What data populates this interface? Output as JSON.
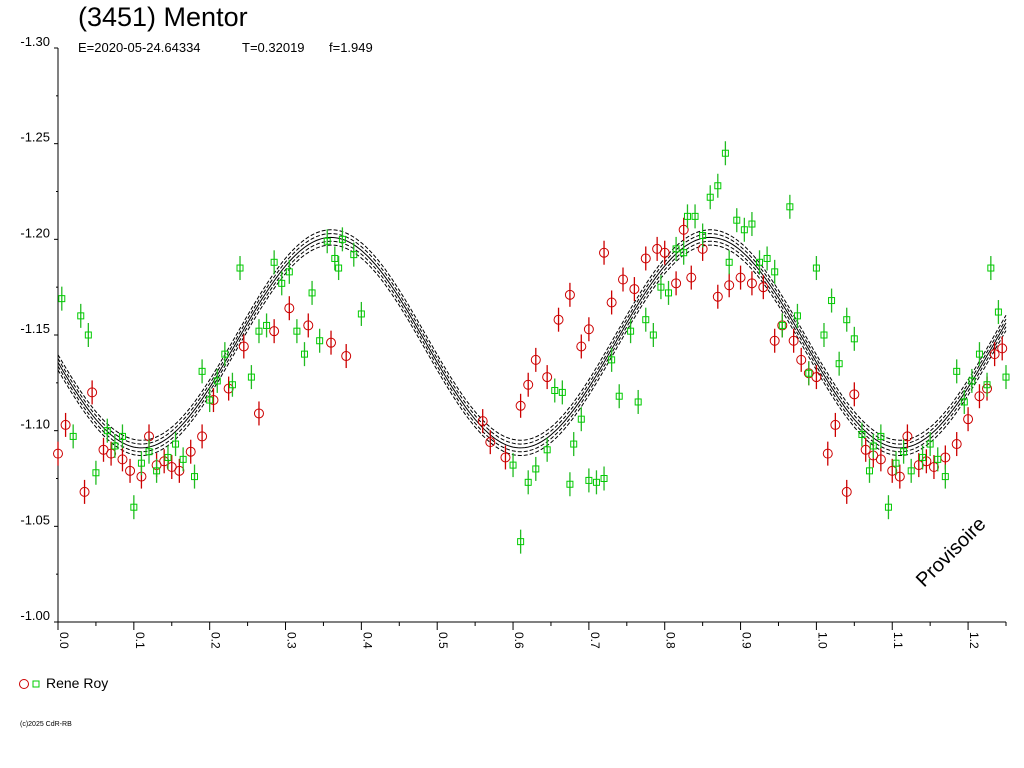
{
  "header": {
    "title": "(3451) Mentor",
    "epoch": "E=2020-05-24.64334",
    "period": "T=0.32019",
    "order": "f=1.949"
  },
  "legend": {
    "observer": "Rene Roy",
    "marker_colors": {
      "circle": "#cc0000",
      "square": "#00cc00"
    }
  },
  "watermark": "Provisoire",
  "copyright": "(c)2025 CdR-RB",
  "colors": {
    "circle_series": "#cc0000",
    "square_series": "#00cc00",
    "error_red": "#cc0000",
    "error_green": "#22bb22",
    "model_curve": "#000000"
  },
  "chart_data": {
    "type": "scatter",
    "xlim": [
      0.0,
      1.25
    ],
    "ylim": [
      -1.3,
      -1.0
    ],
    "y_inverted": true,
    "x_ticks": [
      "0.0",
      "0.1",
      "0.2",
      "0.3",
      "0.4",
      "0.5",
      "0.6",
      "0.7",
      "0.8",
      "0.9",
      "1.0",
      "1.1",
      "1.2"
    ],
    "y_ticks": [
      "-1.30",
      "-1.25",
      "-1.20",
      "-1.15",
      "-1.10",
      "-1.05",
      "-1.00"
    ],
    "fit_curve": {
      "order_label": "f=1.949",
      "mean": -1.146,
      "amplitude": 0.055,
      "peak_phase": 0.36,
      "band_offsets": [
        -0.004,
        -0.002,
        0,
        0.002,
        0.004
      ]
    },
    "series": [
      {
        "name": "Rene Roy",
        "marker": "circle",
        "points": [
          [
            0.0,
            -1.088
          ],
          [
            0.01,
            -1.103
          ],
          [
            0.035,
            -1.068
          ],
          [
            0.045,
            -1.12
          ],
          [
            0.06,
            -1.09
          ],
          [
            0.07,
            -1.088
          ],
          [
            0.085,
            -1.085
          ],
          [
            0.095,
            -1.079
          ],
          [
            0.11,
            -1.076
          ],
          [
            0.12,
            -1.097
          ],
          [
            0.13,
            -1.082
          ],
          [
            0.14,
            -1.084
          ],
          [
            0.15,
            -1.081
          ],
          [
            0.16,
            -1.079
          ],
          [
            0.175,
            -1.089
          ],
          [
            0.19,
            -1.097
          ],
          [
            0.205,
            -1.116
          ],
          [
            0.225,
            -1.122
          ],
          [
            0.245,
            -1.144
          ],
          [
            0.265,
            -1.109
          ],
          [
            0.285,
            -1.152
          ],
          [
            0.305,
            -1.164
          ],
          [
            0.33,
            -1.155
          ],
          [
            0.36,
            -1.146
          ],
          [
            0.38,
            -1.139
          ],
          [
            0.56,
            -1.105
          ],
          [
            0.57,
            -1.094
          ],
          [
            0.59,
            -1.086
          ],
          [
            0.61,
            -1.113
          ],
          [
            0.62,
            -1.124
          ],
          [
            0.63,
            -1.137
          ],
          [
            0.645,
            -1.128
          ],
          [
            0.66,
            -1.158
          ],
          [
            0.675,
            -1.171
          ],
          [
            0.69,
            -1.144
          ],
          [
            0.7,
            -1.153
          ],
          [
            0.72,
            -1.193
          ],
          [
            0.73,
            -1.167
          ],
          [
            0.745,
            -1.179
          ],
          [
            0.76,
            -1.174
          ],
          [
            0.775,
            -1.19
          ],
          [
            0.79,
            -1.195
          ],
          [
            0.8,
            -1.193
          ],
          [
            0.815,
            -1.177
          ],
          [
            0.825,
            -1.205
          ],
          [
            0.835,
            -1.18
          ],
          [
            0.85,
            -1.195
          ],
          [
            0.87,
            -1.17
          ],
          [
            0.885,
            -1.176
          ],
          [
            0.9,
            -1.18
          ],
          [
            0.915,
            -1.177
          ],
          [
            0.93,
            -1.175
          ],
          [
            0.945,
            -1.147
          ],
          [
            0.955,
            -1.155
          ],
          [
            0.97,
            -1.147
          ],
          [
            0.98,
            -1.137
          ],
          [
            0.99,
            -1.13
          ],
          [
            1.0,
            -1.128
          ],
          [
            1.015,
            -1.088
          ],
          [
            1.025,
            -1.103
          ],
          [
            1.04,
            -1.068
          ],
          [
            1.05,
            -1.119
          ],
          [
            1.065,
            -1.09
          ],
          [
            1.075,
            -1.087
          ],
          [
            1.085,
            -1.085
          ],
          [
            1.1,
            -1.079
          ],
          [
            1.11,
            -1.076
          ],
          [
            1.12,
            -1.097
          ],
          [
            1.135,
            -1.082
          ],
          [
            1.145,
            -1.084
          ],
          [
            1.155,
            -1.081
          ],
          [
            1.17,
            -1.086
          ],
          [
            1.185,
            -1.093
          ],
          [
            1.2,
            -1.106
          ],
          [
            1.215,
            -1.118
          ],
          [
            1.225,
            -1.122
          ],
          [
            1.235,
            -1.14
          ],
          [
            1.245,
            -1.143
          ]
        ]
      },
      {
        "name": "Rene Roy",
        "marker": "square",
        "points": [
          [
            0.005,
            -1.169
          ],
          [
            0.02,
            -1.097
          ],
          [
            0.03,
            -1.16
          ],
          [
            0.04,
            -1.15
          ],
          [
            0.05,
            -1.078
          ],
          [
            0.065,
            -1.1
          ],
          [
            0.075,
            -1.092
          ],
          [
            0.085,
            -1.097
          ],
          [
            0.1,
            -1.06
          ],
          [
            0.11,
            -1.083
          ],
          [
            0.12,
            -1.089
          ],
          [
            0.13,
            -1.079
          ],
          [
            0.145,
            -1.086
          ],
          [
            0.155,
            -1.093
          ],
          [
            0.165,
            -1.085
          ],
          [
            0.18,
            -1.076
          ],
          [
            0.19,
            -1.131
          ],
          [
            0.2,
            -1.116
          ],
          [
            0.21,
            -1.126
          ],
          [
            0.22,
            -1.14
          ],
          [
            0.23,
            -1.124
          ],
          [
            0.24,
            -1.185
          ],
          [
            0.255,
            -1.128
          ],
          [
            0.265,
            -1.152
          ],
          [
            0.275,
            -1.155
          ],
          [
            0.285,
            -1.188
          ],
          [
            0.295,
            -1.177
          ],
          [
            0.305,
            -1.183
          ],
          [
            0.315,
            -1.152
          ],
          [
            0.325,
            -1.14
          ],
          [
            0.335,
            -1.172
          ],
          [
            0.345,
            -1.147
          ],
          [
            0.355,
            -1.199
          ],
          [
            0.365,
            -1.19
          ],
          [
            0.37,
            -1.185
          ],
          [
            0.375,
            -1.2
          ],
          [
            0.39,
            -1.192
          ],
          [
            0.4,
            -1.161
          ],
          [
            0.6,
            -1.082
          ],
          [
            0.61,
            -1.042
          ],
          [
            0.62,
            -1.073
          ],
          [
            0.63,
            -1.08
          ],
          [
            0.645,
            -1.09
          ],
          [
            0.655,
            -1.121
          ],
          [
            0.665,
            -1.12
          ],
          [
            0.675,
            -1.072
          ],
          [
            0.68,
            -1.093
          ],
          [
            0.69,
            -1.106
          ],
          [
            0.7,
            -1.074
          ],
          [
            0.71,
            -1.073
          ],
          [
            0.72,
            -1.075
          ],
          [
            0.73,
            -1.137
          ],
          [
            0.74,
            -1.118
          ],
          [
            0.755,
            -1.152
          ],
          [
            0.765,
            -1.115
          ],
          [
            0.775,
            -1.158
          ],
          [
            0.785,
            -1.15
          ],
          [
            0.795,
            -1.175
          ],
          [
            0.805,
            -1.172
          ],
          [
            0.815,
            -1.195
          ],
          [
            0.825,
            -1.193
          ],
          [
            0.83,
            -1.212
          ],
          [
            0.84,
            -1.212
          ],
          [
            0.85,
            -1.202
          ],
          [
            0.86,
            -1.222
          ],
          [
            0.87,
            -1.228
          ],
          [
            0.88,
            -1.245
          ],
          [
            0.885,
            -1.188
          ],
          [
            0.895,
            -1.21
          ],
          [
            0.905,
            -1.205
          ],
          [
            0.915,
            -1.208
          ],
          [
            0.925,
            -1.188
          ],
          [
            0.935,
            -1.19
          ],
          [
            0.945,
            -1.183
          ],
          [
            0.955,
            -1.155
          ],
          [
            0.965,
            -1.217
          ],
          [
            0.975,
            -1.16
          ],
          [
            0.99,
            -1.13
          ],
          [
            1.0,
            -1.185
          ],
          [
            1.01,
            -1.15
          ],
          [
            1.02,
            -1.168
          ],
          [
            1.03,
            -1.135
          ],
          [
            1.04,
            -1.158
          ],
          [
            1.05,
            -1.148
          ],
          [
            1.06,
            -1.098
          ],
          [
            1.07,
            -1.079
          ],
          [
            1.075,
            -1.092
          ],
          [
            1.085,
            -1.097
          ],
          [
            1.095,
            -1.06
          ],
          [
            1.105,
            -1.083
          ],
          [
            1.115,
            -1.089
          ],
          [
            1.125,
            -1.079
          ],
          [
            1.14,
            -1.086
          ],
          [
            1.15,
            -1.093
          ],
          [
            1.16,
            -1.085
          ],
          [
            1.17,
            -1.076
          ],
          [
            1.185,
            -1.131
          ],
          [
            1.195,
            -1.115
          ],
          [
            1.205,
            -1.126
          ],
          [
            1.215,
            -1.14
          ],
          [
            1.225,
            -1.124
          ],
          [
            1.23,
            -1.185
          ],
          [
            1.24,
            -1.162
          ],
          [
            1.25,
            -1.128
          ]
        ]
      }
    ]
  }
}
